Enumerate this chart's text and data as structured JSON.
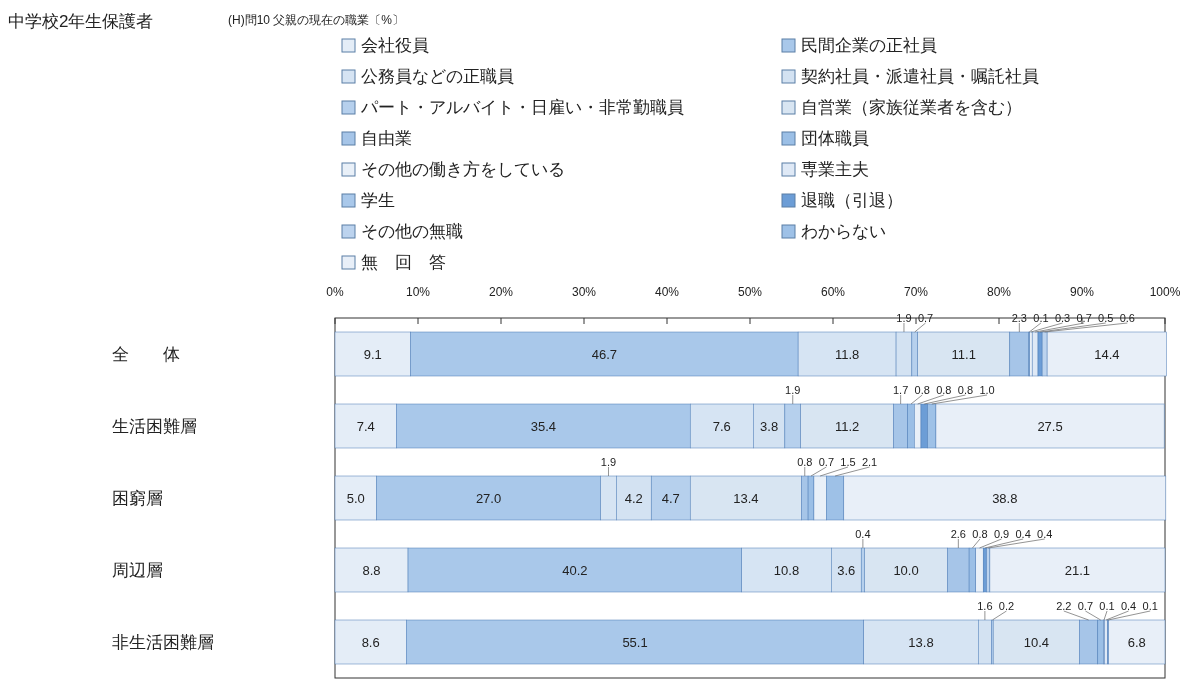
{
  "chart_data": {
    "type": "bar",
    "orientation": "horizontal",
    "stacked": true,
    "title": "中学校2年生保護者",
    "subtitle": "(H)問10  父親の現在の職業〔%〕",
    "categories": [
      "全　　体",
      "生活困難層",
      "困窮層",
      "周辺層",
      "非生活困難層"
    ],
    "xlim": [
      0,
      100
    ],
    "xticks": [
      {
        "value": 0,
        "label": "0%"
      },
      {
        "value": 10,
        "label": "10%"
      },
      {
        "value": 20,
        "label": "20%"
      },
      {
        "value": 30,
        "label": "30%"
      },
      {
        "value": 40,
        "label": "40%"
      },
      {
        "value": 50,
        "label": "50%"
      },
      {
        "value": 60,
        "label": "60%"
      },
      {
        "value": 70,
        "label": "70%"
      },
      {
        "value": 80,
        "label": "80%"
      },
      {
        "value": 90,
        "label": "90%"
      },
      {
        "value": 100,
        "label": "100%"
      }
    ],
    "legend": "top",
    "grid": false,
    "series": [
      {
        "name": "会社役員",
        "color": "#e4edf7",
        "values": [
          9.1,
          7.4,
          5.0,
          8.8,
          8.6
        ],
        "value_labels": [
          "9.1",
          "7.4",
          "5.0",
          "8.8",
          "8.6"
        ]
      },
      {
        "name": "民間企業の正社員",
        "color": "#a9c8ea",
        "values": [
          46.7,
          35.4,
          27.0,
          40.2,
          55.1
        ],
        "value_labels": [
          "46.7",
          "35.4",
          "27.0",
          "40.2",
          "55.1"
        ]
      },
      {
        "name": "公務員などの正職員",
        "color": "#d6e4f3",
        "values": [
          11.8,
          7.6,
          1.9,
          10.8,
          13.8
        ],
        "value_labels": [
          "11.8",
          "7.6",
          "1.9",
          "10.8",
          "13.8"
        ]
      },
      {
        "name": "契約社員・派遣社員・嘱託社員",
        "color": "#d3e2f2",
        "values": [
          1.9,
          3.8,
          4.2,
          3.6,
          1.6
        ],
        "value_labels": [
          "1.9",
          "3.8",
          "4.2",
          "3.6",
          "1.6"
        ]
      },
      {
        "name": "パート・アルバイト・日雇い・非常勤職員",
        "color": "#b6d0ed",
        "values": [
          0.7,
          1.9,
          4.7,
          0.4,
          0.2
        ],
        "value_labels": [
          "0.7",
          "1.9",
          "4.7",
          "0.4",
          "0.2"
        ]
      },
      {
        "name": "自営業（家族従業者を含む）",
        "color": "#d8e5f2",
        "values": [
          11.1,
          11.2,
          13.4,
          10.0,
          10.4
        ],
        "value_labels": [
          "11.1",
          "11.2",
          "13.4",
          "10.0",
          "10.4"
        ]
      },
      {
        "name": "自由業",
        "color": "#a6c5e8",
        "values": [
          2.3,
          1.7,
          0.8,
          2.6,
          2.2
        ],
        "value_labels": [
          "2.3",
          "1.7",
          "0.8",
          "2.6",
          "2.2"
        ]
      },
      {
        "name": "団体職員",
        "color": "#9bbfe6",
        "values": [
          0.1,
          0.8,
          0.7,
          0.8,
          0.7
        ],
        "value_labels": [
          "0.1",
          "0.8",
          "0.7",
          "0.8",
          "0.7"
        ]
      },
      {
        "name": "その他の働き方をしている",
        "color": "#e9f0f8",
        "values": [
          0.3,
          0.8,
          1.5,
          0.9,
          0.1
        ],
        "value_labels": [
          "0.3",
          "0.8",
          "1.5",
          "0.9",
          "0.1"
        ]
      },
      {
        "name": "専業主夫",
        "color": "#dfe9f6",
        "values": [
          0.7,
          0,
          0,
          0,
          0.4
        ],
        "value_labels": [
          "0.7",
          null,
          null,
          null,
          "0.4"
        ]
      },
      {
        "name": "学生",
        "color": "#a9c8ea",
        "values": [
          0,
          0,
          0,
          0,
          0
        ],
        "value_labels": [
          null,
          null,
          null,
          null,
          null
        ]
      },
      {
        "name": "退職（引退）",
        "color": "#6c9dd6",
        "values": [
          0.5,
          0.8,
          0,
          0.4,
          0.1
        ],
        "value_labels": [
          "0.5",
          "0.8",
          null,
          "0.4",
          "0.1"
        ]
      },
      {
        "name": "その他の無職",
        "color": "#bcd3ee",
        "values": [
          0.6,
          0,
          0,
          0.4,
          0
        ],
        "value_labels": [
          "0.6",
          null,
          null,
          "0.4",
          null
        ]
      },
      {
        "name": "わからない",
        "color": "#9ec1e7",
        "values": [
          0,
          1.0,
          2.1,
          0,
          0
        ],
        "value_labels": [
          null,
          "1.0",
          "2.1",
          null,
          null
        ]
      },
      {
        "name": "無　回　答",
        "color": "#e8eff8",
        "values": [
          14.4,
          27.5,
          38.8,
          21.1,
          6.8
        ],
        "value_labels": [
          "14.4",
          "27.5",
          "38.8",
          "21.1",
          "6.8"
        ]
      }
    ]
  }
}
